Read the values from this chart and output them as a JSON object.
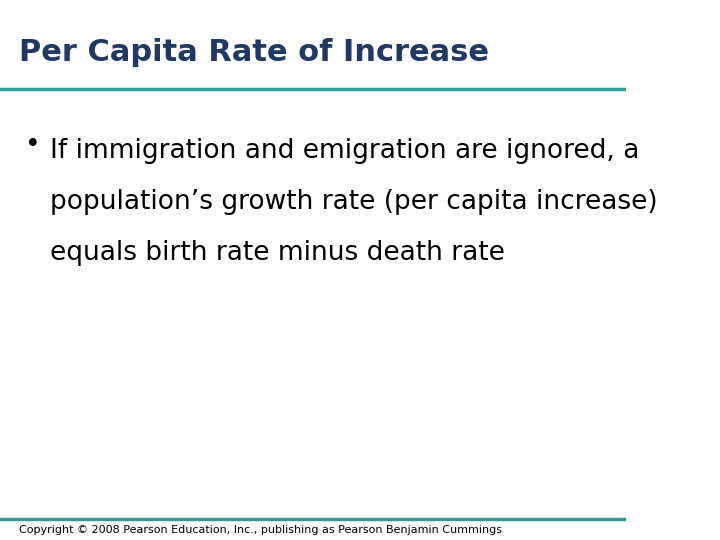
{
  "title": "Per Capita Rate of Increase",
  "title_color": "#1F3864",
  "title_fontsize": 22,
  "title_bold": true,
  "rule_color": "#2E9C9C",
  "rule_thickness": 2.5,
  "bullet_text_line1": "If immigration and emigration are ignored, a",
  "bullet_text_line2": "population’s growth rate (per capita increase)",
  "bullet_text_line3": "equals birth rate minus death rate",
  "bullet_color": "#000000",
  "bullet_fontsize": 19,
  "copyright_text": "Copyright © 2008 Pearson Education, Inc., publishing as Pearson Benjamin Cummings",
  "copyright_fontsize": 8,
  "background_color": "#ffffff"
}
